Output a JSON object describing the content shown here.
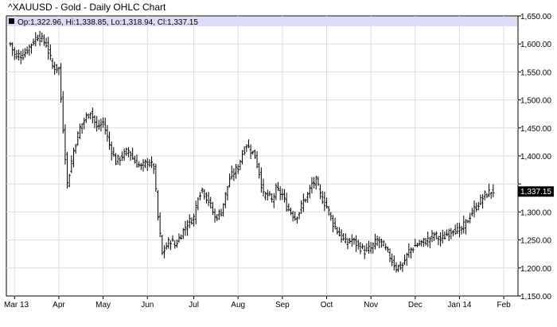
{
  "chart_data": {
    "type": "ohlc",
    "title": "^XAUUSD - Gold - Daily OHLC Chart",
    "info": {
      "open_label": "Op:",
      "open": "1,322.96",
      "high_label": "Hi:",
      "high": "1,338.85",
      "low_label": "Lo:",
      "low": "1,318.94",
      "close_label": "Cl:",
      "close": "1,337.15"
    },
    "last_price_label": "1,337.15",
    "ylim": [
      1150,
      1650
    ],
    "yticks": [
      1150,
      1200,
      1250,
      1300,
      1350,
      1400,
      1450,
      1500,
      1550,
      1600,
      1650
    ],
    "ytick_labels": [
      "1,150.00",
      "1,200.00",
      "1,250.00",
      "1,300.00",
      "",
      "1,400.00",
      "1,450.00",
      "1,500.00",
      "1,550.00",
      "1,600.00",
      "1,650.00"
    ],
    "x_tick_labels": [
      "Mar 13",
      "Apr",
      "May",
      "Jun",
      "Jul",
      "Aug",
      "Sep",
      "Oct",
      "Nov",
      "Dec",
      "Jan 14",
      "Feb"
    ],
    "x_tick_positions": [
      2,
      23,
      44,
      65,
      87,
      108,
      129,
      150,
      171,
      192,
      213,
      234
    ],
    "grid": true,
    "close_anchors": [
      [
        0,
        1600
      ],
      [
        2,
        1580
      ],
      [
        6,
        1580
      ],
      [
        10,
        1600
      ],
      [
        13,
        1615
      ],
      [
        17,
        1600
      ],
      [
        20,
        1560
      ],
      [
        23,
        1555
      ],
      [
        25,
        1450
      ],
      [
        27,
        1350
      ],
      [
        30,
        1410
      ],
      [
        33,
        1450
      ],
      [
        36,
        1470
      ],
      [
        38,
        1480
      ],
      [
        41,
        1450
      ],
      [
        44,
        1460
      ],
      [
        47,
        1420
      ],
      [
        50,
        1390
      ],
      [
        53,
        1400
      ],
      [
        56,
        1410
      ],
      [
        59,
        1390
      ],
      [
        62,
        1380
      ],
      [
        65,
        1390
      ],
      [
        68,
        1380
      ],
      [
        70,
        1290
      ],
      [
        72,
        1225
      ],
      [
        74,
        1240
      ],
      [
        76,
        1250
      ],
      [
        78,
        1240
      ],
      [
        81,
        1260
      ],
      [
        84,
        1280
      ],
      [
        87,
        1290
      ],
      [
        89,
        1330
      ],
      [
        91,
        1340
      ],
      [
        94,
        1320
      ],
      [
        97,
        1290
      ],
      [
        100,
        1300
      ],
      [
        102,
        1330
      ],
      [
        104,
        1360
      ],
      [
        106,
        1370
      ],
      [
        108,
        1380
      ],
      [
        110,
        1405
      ],
      [
        112,
        1420
      ],
      [
        114,
        1410
      ],
      [
        116,
        1400
      ],
      [
        118,
        1370
      ],
      [
        120,
        1330
      ],
      [
        122,
        1330
      ],
      [
        124,
        1320
      ],
      [
        126,
        1340
      ],
      [
        129,
        1330
      ],
      [
        131,
        1310
      ],
      [
        133,
        1300
      ],
      [
        135,
        1290
      ],
      [
        137,
        1300
      ],
      [
        139,
        1320
      ],
      [
        141,
        1330
      ],
      [
        143,
        1350
      ],
      [
        145,
        1355
      ],
      [
        147,
        1330
      ],
      [
        150,
        1310
      ],
      [
        153,
        1280
      ],
      [
        156,
        1260
      ],
      [
        159,
        1245
      ],
      [
        162,
        1250
      ],
      [
        165,
        1240
      ],
      [
        168,
        1230
      ],
      [
        171,
        1235
      ],
      [
        174,
        1250
      ],
      [
        177,
        1240
      ],
      [
        180,
        1220
      ],
      [
        183,
        1200
      ],
      [
        186,
        1205
      ],
      [
        189,
        1230
      ],
      [
        192,
        1240
      ],
      [
        195,
        1245
      ],
      [
        198,
        1250
      ],
      [
        201,
        1260
      ],
      [
        204,
        1250
      ],
      [
        207,
        1260
      ],
      [
        210,
        1270
      ],
      [
        213,
        1265
      ],
      [
        216,
        1280
      ],
      [
        219,
        1300
      ],
      [
        222,
        1315
      ],
      [
        225,
        1330
      ],
      [
        228,
        1337
      ]
    ]
  }
}
